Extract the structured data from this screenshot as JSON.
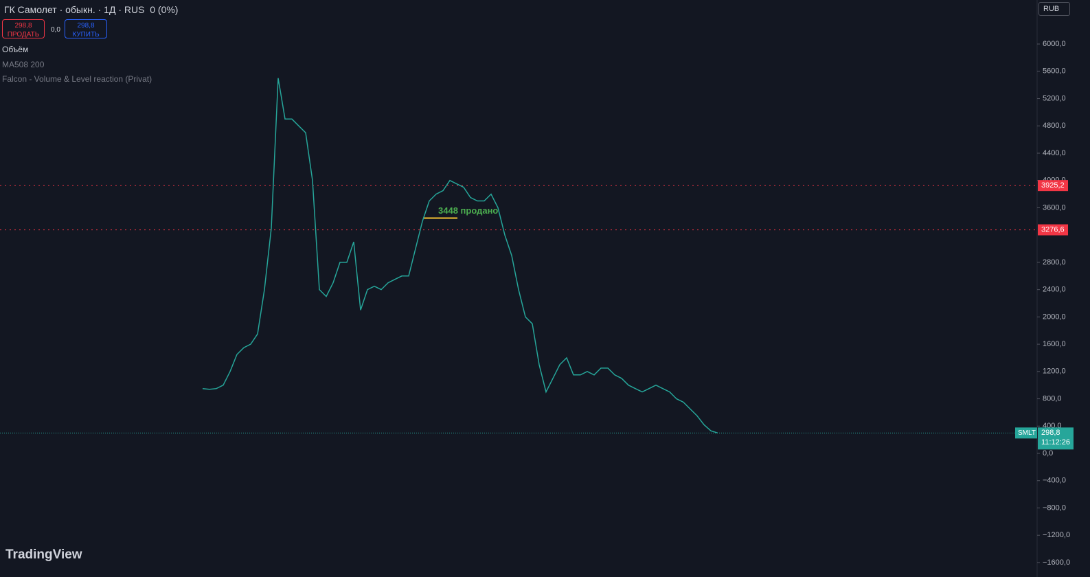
{
  "header": {
    "title": "ГК Самолет · обыкн. · 1Д · RUS",
    "change": "0 (0%)",
    "sell_price": "298,8",
    "sell_label": "ПРОДАТЬ",
    "spread": "0,0",
    "buy_price": "298,8",
    "buy_label": "КУПИТЬ",
    "currency": "RUB"
  },
  "indicators": [
    "Объём",
    "MA508 200",
    "Falcon - Volume & Level reaction (Privat)"
  ],
  "logo": "TradingView",
  "chart_data": {
    "type": "line",
    "color": "#26a69a",
    "values": [
      950,
      940,
      950,
      1000,
      1200,
      1450,
      1550,
      1600,
      1750,
      2400,
      3300,
      5500,
      4900,
      4900,
      4800,
      4700,
      4000,
      2400,
      2300,
      2500,
      2800,
      2800,
      3100,
      2100,
      2400,
      2450,
      2400,
      2500,
      2550,
      2600,
      2600,
      3000,
      3400,
      3700,
      3800,
      3850,
      4000,
      3950,
      3900,
      3750,
      3700,
      3700,
      3800,
      3600,
      3200,
      2900,
      2400,
      2000,
      1900,
      1300,
      900,
      1100,
      1300,
      1400,
      1150,
      1150,
      1200,
      1150,
      1250,
      1250,
      1150,
      1100,
      1000,
      950,
      900,
      950,
      1000,
      950,
      900,
      800,
      750,
      650,
      550,
      420,
      330,
      298.8
    ],
    "ylim": [
      -1812,
      6645
    ],
    "yticks": [
      {
        "value": 6000,
        "label": "6000,0"
      },
      {
        "value": 5600,
        "label": "5600,0"
      },
      {
        "value": 5200,
        "label": "5200,0"
      },
      {
        "value": 4800,
        "label": "4800,0"
      },
      {
        "value": 4400,
        "label": "4400,0"
      },
      {
        "value": 4000,
        "label": "4000,0"
      },
      {
        "value": 3600,
        "label": "3600,0"
      },
      {
        "value": 2800,
        "label": "2800,0"
      },
      {
        "value": 2400,
        "label": "2400,0"
      },
      {
        "value": 2000,
        "label": "2000,0"
      },
      {
        "value": 1600,
        "label": "1600,0"
      },
      {
        "value": 1200,
        "label": "1200,0"
      },
      {
        "value": 800,
        "label": "800,0"
      },
      {
        "value": 400,
        "label": "400,0"
      },
      {
        "value": 0,
        "label": "0,0"
      },
      {
        "value": -400,
        "label": "−400,0"
      },
      {
        "value": -800,
        "label": "−800,0"
      },
      {
        "value": -1200,
        "label": "−1200,0"
      },
      {
        "value": -1600,
        "label": "−1600,0"
      }
    ],
    "levels": [
      {
        "value": 3925.2,
        "label": "3925,2"
      },
      {
        "value": 3276.6,
        "label": "3276,6"
      }
    ],
    "current": {
      "value": 298.8,
      "label": "298,8",
      "ticker": "SMLT",
      "countdown": "11:12:26"
    },
    "annotation": {
      "value": 3448,
      "text": "3448 продано"
    }
  }
}
